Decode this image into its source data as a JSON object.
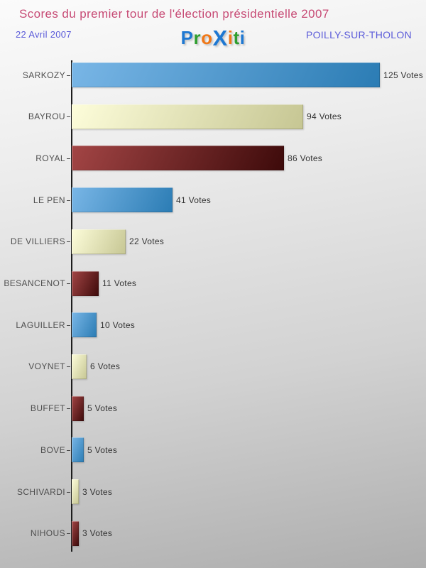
{
  "header": {
    "title": "Scores du premier tour de l'élection présidentielle 2007",
    "date": "22 Avril 2007",
    "location": "POILLY-SUR-THOLON",
    "title_color": "#c64a74",
    "subtitle_color": "#5b5bd9",
    "logo_letters": [
      {
        "char": "P",
        "color": "#1e78d2",
        "big": false
      },
      {
        "char": "r",
        "color": "#2f9e2f",
        "big": false
      },
      {
        "char": "o",
        "color": "#f07818",
        "big": false
      },
      {
        "char": "X",
        "color": "#1e78d2",
        "big": true
      },
      {
        "char": "i",
        "color": "#f07818",
        "big": false
      },
      {
        "char": "t",
        "color": "#2f9e2f",
        "big": false
      },
      {
        "char": "i",
        "color": "#1e78d2",
        "big": false
      }
    ]
  },
  "chart_data": {
    "type": "bar",
    "orientation": "horizontal",
    "title": "Scores du premier tour de l'élection présidentielle 2007",
    "subtitle": "22 Avril 2007 — POILLY-SUR-THOLON",
    "categories": [
      "SARKOZY",
      "BAYROU",
      "ROYAL",
      "LE PEN",
      "DE VILLIERS",
      "BESANCENOT",
      "LAGUILLER",
      "VOYNET",
      "BUFFET",
      "BOVE",
      "SCHIVARDI",
      "NIHOUS"
    ],
    "values": [
      125,
      94,
      86,
      41,
      22,
      11,
      10,
      6,
      5,
      5,
      3,
      3
    ],
    "value_suffix": " Votes",
    "xlabel": "",
    "ylabel": "",
    "xlim": [
      0,
      125
    ],
    "grid": false,
    "legend": false,
    "bar_color_cycle": [
      "blue",
      "cream",
      "darkred"
    ],
    "bar_colors": {
      "blue": [
        "#79b6e6",
        "#2b7cb4"
      ],
      "cream": [
        "#fdfdda",
        "#c6c693"
      ],
      "darkred": [
        "#a34545",
        "#3d0a0a"
      ]
    },
    "axis_color": "#1c1c1c",
    "label_color": "#4f4f4f",
    "value_color": "#333333"
  }
}
